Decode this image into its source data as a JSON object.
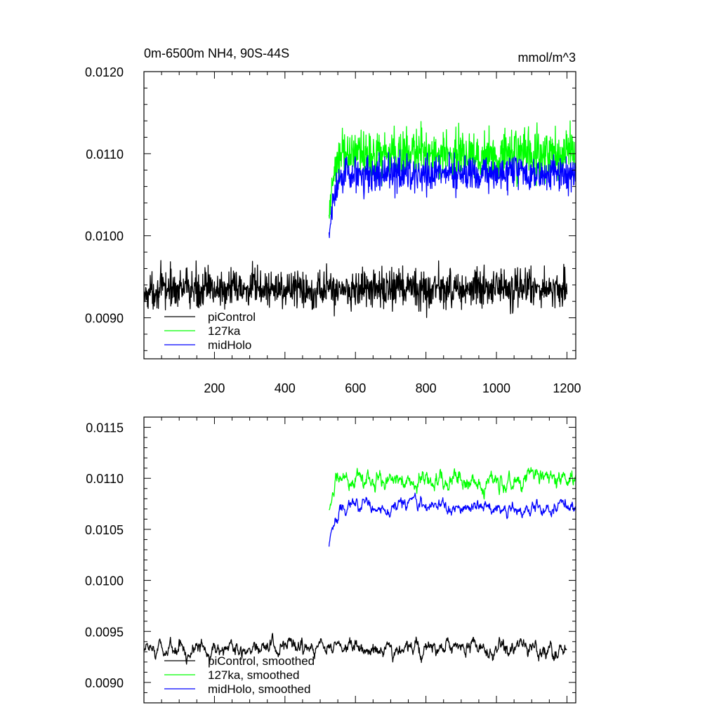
{
  "chart_data": [
    {
      "type": "line",
      "title": "0m-6500m NH4, 90S-44S",
      "units": "mmol/m^3",
      "xlim": [
        0,
        1225
      ],
      "ylim": [
        0.0085,
        0.012
      ],
      "xticks": [
        200,
        400,
        600,
        800,
        1000,
        1200
      ],
      "xtick_labels": [
        "200",
        "400",
        "600",
        "800",
        "1000",
        "1200"
      ],
      "yticks": [
        0.009,
        0.01,
        0.011,
        0.012
      ],
      "ytick_labels": [
        "0.0090",
        "0.0100",
        "0.0110",
        "0.0120"
      ],
      "grid": false,
      "legend_position": "bottom-left",
      "series": [
        {
          "name": "piControl",
          "color": "#000000",
          "x_range": [
            1,
            1200
          ],
          "mean": 0.00935,
          "noise": 0.00024,
          "start_value": 0.00925
        },
        {
          "name": "127ka",
          "color": "#00ff00",
          "x_range": [
            525,
            1225
          ],
          "mean": 0.011,
          "noise": 0.0003,
          "start_value": 0.01015
        },
        {
          "name": "midHolo",
          "color": "#0000ff",
          "x_range": [
            525,
            1225
          ],
          "mean": 0.01075,
          "noise": 0.00022,
          "start_value": 0.00995
        }
      ]
    },
    {
      "type": "line",
      "title": "",
      "xlim": [
        0,
        1225
      ],
      "ylim": [
        0.0088,
        0.0116
      ],
      "xticks": [
        200,
        400,
        600,
        800,
        1000,
        1200
      ],
      "yticks": [
        0.009,
        0.0095,
        0.01,
        0.0105,
        0.011,
        0.0115
      ],
      "ytick_labels": [
        "0.0090",
        "0.0095",
        "0.0100",
        "0.0105",
        "0.0110",
        "0.0115"
      ],
      "grid": false,
      "legend_position": "bottom-left",
      "series": [
        {
          "name": "piControl, smoothed",
          "color": "#000000",
          "x_range": [
            1,
            1200
          ],
          "mean": 0.00933,
          "noise": 9e-05,
          "start_value": 0.0093
        },
        {
          "name": "127ka, smoothed",
          "color": "#00ff00",
          "x_range": [
            525,
            1225
          ],
          "mean": 0.01098,
          "noise": 0.00011,
          "start_value": 0.0107
        },
        {
          "name": "midHolo, smoothed",
          "color": "#0000ff",
          "x_range": [
            525,
            1225
          ],
          "mean": 0.01072,
          "noise": 8e-05,
          "start_value": 0.01033
        }
      ]
    }
  ]
}
